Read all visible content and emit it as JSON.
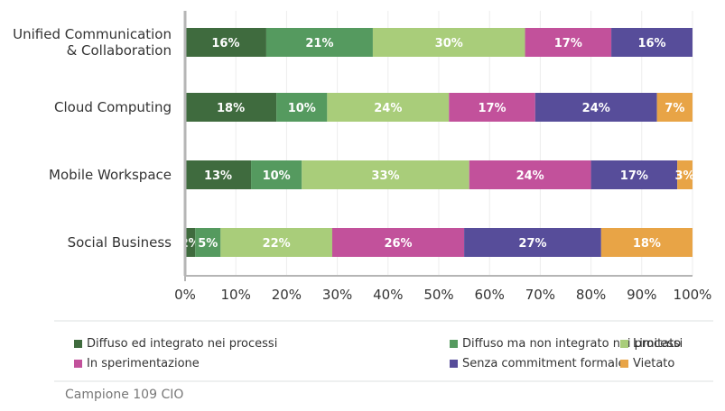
{
  "chart_data": {
    "type": "bar",
    "orientation": "horizontal",
    "stacked": true,
    "title": "",
    "xlabel": "",
    "ylabel": "",
    "xlim": [
      0,
      100
    ],
    "grid": true,
    "legend_position": "bottom",
    "categories": [
      [
        "Unified Communication",
        "& Collaboration"
      ],
      [
        "Cloud Computing"
      ],
      [
        "Mobile Workspace"
      ],
      [
        "Social Business"
      ]
    ],
    "x_ticks": [
      "0%",
      "10%",
      "20%",
      "30%",
      "40%",
      "50%",
      "60%",
      "70%",
      "80%",
      "90%",
      "100%"
    ],
    "series": [
      {
        "name": "Diffuso ed integrato nei processi",
        "color": "#3f6b3e",
        "values": [
          16,
          18,
          13,
          2
        ]
      },
      {
        "name": "Diffuso ma non integrato nei processi",
        "color": "#559a5f",
        "values": [
          21,
          10,
          10,
          5
        ]
      },
      {
        "name": "Limitato",
        "color": "#a9cd7a",
        "values": [
          30,
          24,
          33,
          22
        ]
      },
      {
        "name": "In sperimentazione",
        "color": "#c2519b",
        "values": [
          17,
          17,
          24,
          26
        ]
      },
      {
        "name": "Senza commitment formale",
        "color": "#574d9a",
        "values": [
          16,
          24,
          17,
          27
        ]
      },
      {
        "name": "Vietato",
        "color": "#e8a446",
        "values": [
          0,
          7,
          3,
          18
        ]
      }
    ],
    "value_suffix": "%"
  },
  "footer": "Campione 109 CIO"
}
